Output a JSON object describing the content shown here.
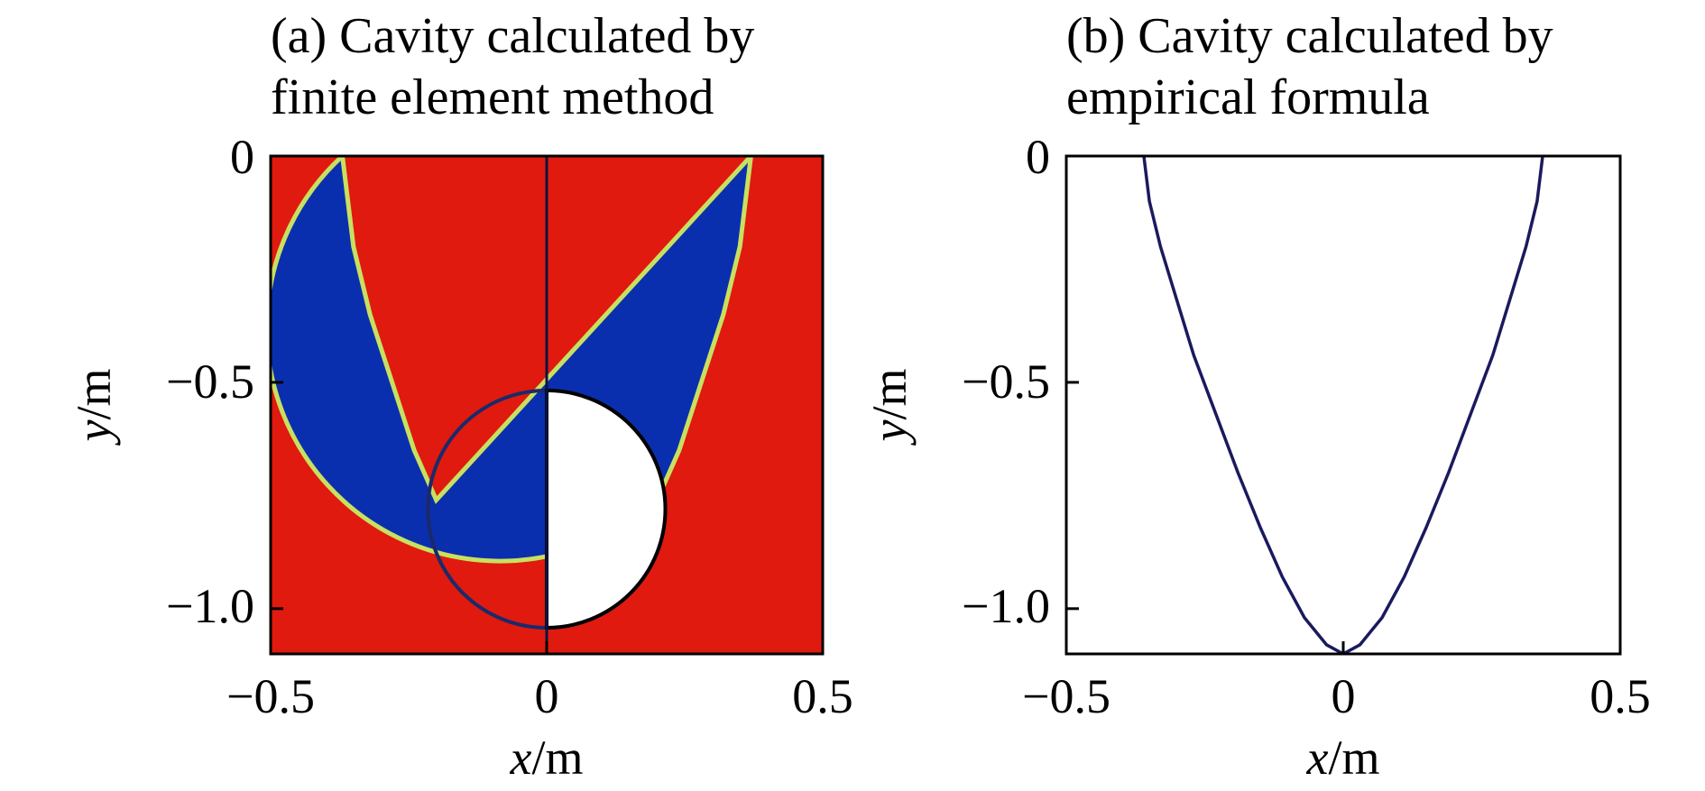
{
  "chart_data": [
    {
      "type": "heatmap",
      "panel": "a",
      "title_lines": [
        "(a) Cavity calculated by",
        "finite element method"
      ],
      "xlabel": {
        "var": "x",
        "unit": "/m"
      },
      "ylabel": {
        "var": "y",
        "unit": "/m"
      },
      "xlim": [
        -0.5,
        0.5
      ],
      "ylim": [
        -1.1,
        0
      ],
      "xticks": [
        {
          "value": -0.5,
          "label": "−0.5"
        },
        {
          "value": 0,
          "label": "0"
        },
        {
          "value": 0.5,
          "label": "0.5"
        }
      ],
      "yticks": [
        {
          "value": 0,
          "label": "0"
        },
        {
          "value": -0.5,
          "label": "−0.5"
        },
        {
          "value": -1.0,
          "label": "−1.0"
        }
      ],
      "colors": {
        "medium": "#e01a0e",
        "cavity": "#0a2fae",
        "interface": "#c8e060",
        "projectile": "#ffffff"
      },
      "cavity_boundary": [
        {
          "x": 0.37,
          "y": 0
        },
        {
          "x": 0.35,
          "y": -0.2
        },
        {
          "x": 0.32,
          "y": -0.35
        },
        {
          "x": 0.28,
          "y": -0.5
        },
        {
          "x": 0.24,
          "y": -0.65
        },
        {
          "x": 0.2,
          "y": -0.76
        }
      ],
      "projectile": {
        "cx": 0,
        "cy": -0.78,
        "r": 0.215
      }
    },
    {
      "type": "line",
      "panel": "b",
      "title_lines": [
        "(b) Cavity calculated by",
        "empirical formula"
      ],
      "xlabel": {
        "var": "x",
        "unit": "/m"
      },
      "ylabel": {
        "var": "y",
        "unit": "/m"
      },
      "xlim": [
        -0.5,
        0.5
      ],
      "ylim": [
        -1.1,
        0
      ],
      "xticks": [
        {
          "value": -0.5,
          "label": "−0.5"
        },
        {
          "value": 0,
          "label": "0"
        },
        {
          "value": 0.5,
          "label": "0.5"
        }
      ],
      "yticks": [
        {
          "value": 0,
          "label": "0"
        },
        {
          "value": -0.5,
          "label": "−0.5"
        },
        {
          "value": -1.0,
          "label": "−1.0"
        }
      ],
      "line_color": "#1a1a5e",
      "series": [
        {
          "x": [
            -0.36,
            -0.35,
            -0.33,
            -0.3,
            -0.27,
            -0.23,
            -0.19,
            -0.15,
            -0.11,
            -0.07,
            -0.03,
            0,
            0.03,
            0.07,
            0.11,
            0.15,
            0.19,
            0.23,
            0.27,
            0.3,
            0.33,
            0.35,
            0.36
          ],
          "y": [
            0,
            -0.1,
            -0.2,
            -0.32,
            -0.44,
            -0.57,
            -0.7,
            -0.82,
            -0.93,
            -1.02,
            -1.08,
            -1.1,
            -1.08,
            -1.02,
            -0.93,
            -0.82,
            -0.7,
            -0.57,
            -0.44,
            -0.32,
            -0.2,
            -0.1,
            0
          ]
        }
      ]
    }
  ]
}
